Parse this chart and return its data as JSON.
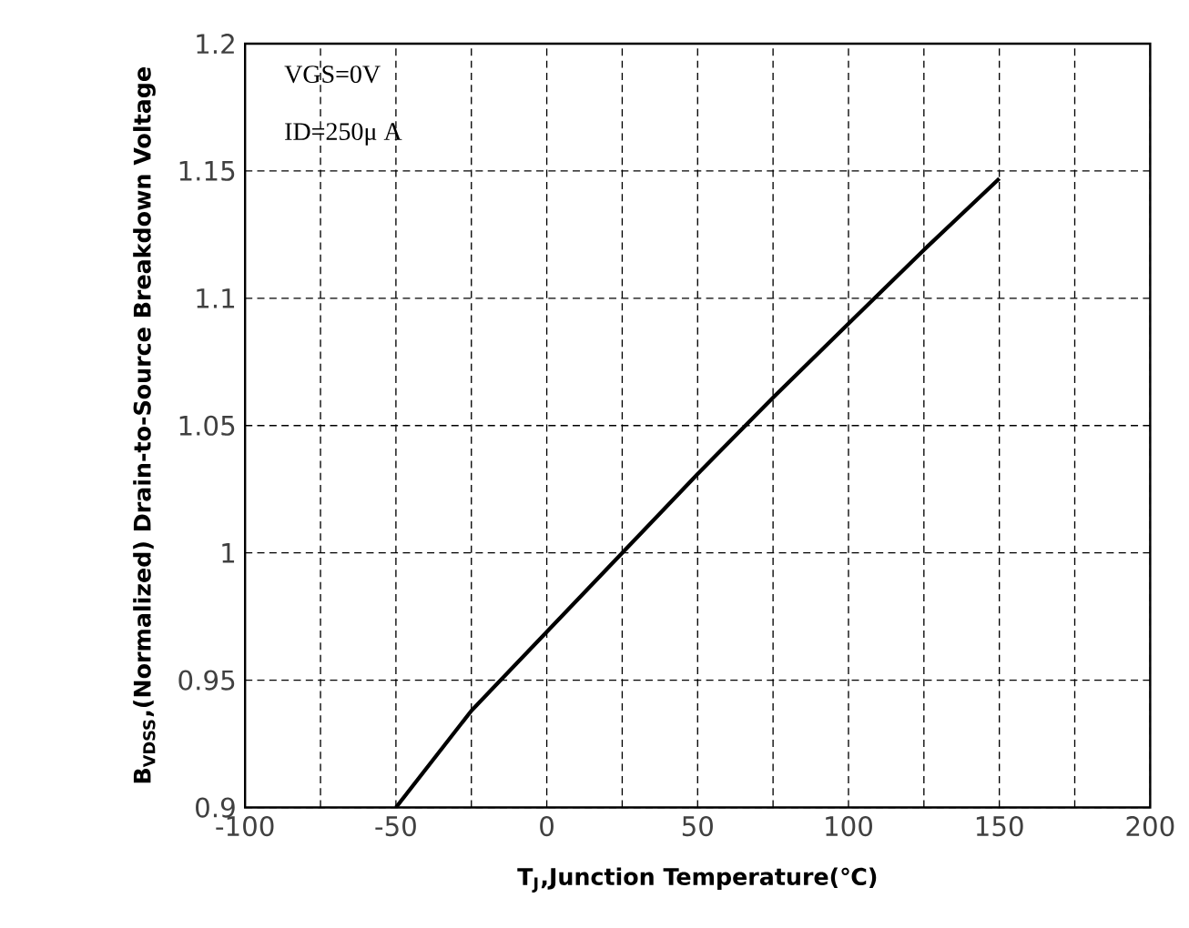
{
  "chart_data": {
    "type": "line",
    "xlabel": "T$_{J}$,Junction Temperature(℃)",
    "ylabel": "B$_{VDSS}$,(Normalized) Drain-to-Source Breakdown Voltage",
    "annotations": [
      "VGS=0V",
      "ID=250μ A"
    ],
    "x": [
      -50,
      -25,
      0,
      25,
      50,
      75,
      100,
      125,
      150
    ],
    "values": [
      0.9,
      0.938,
      0.969,
      1.0,
      1.031,
      1.061,
      1.09,
      1.119,
      1.147
    ],
    "color": "#000000",
    "xlim": [
      -100,
      200
    ],
    "xticks": [
      -100,
      {
        "value": -75,
        "label": null
      },
      -50,
      {
        "value": -25,
        "label": null
      },
      0,
      {
        "value": 25,
        "label": null
      },
      50,
      {
        "value": 75,
        "label": null
      },
      100,
      {
        "value": 125,
        "label": null
      },
      150,
      {
        "value": 175,
        "label": null
      },
      200
    ],
    "ylim": [
      0.9,
      1.2
    ],
    "yticks": [
      0.9,
      0.95,
      1,
      1.05,
      1.1,
      1.15,
      1.2
    ],
    "grid": true
  }
}
